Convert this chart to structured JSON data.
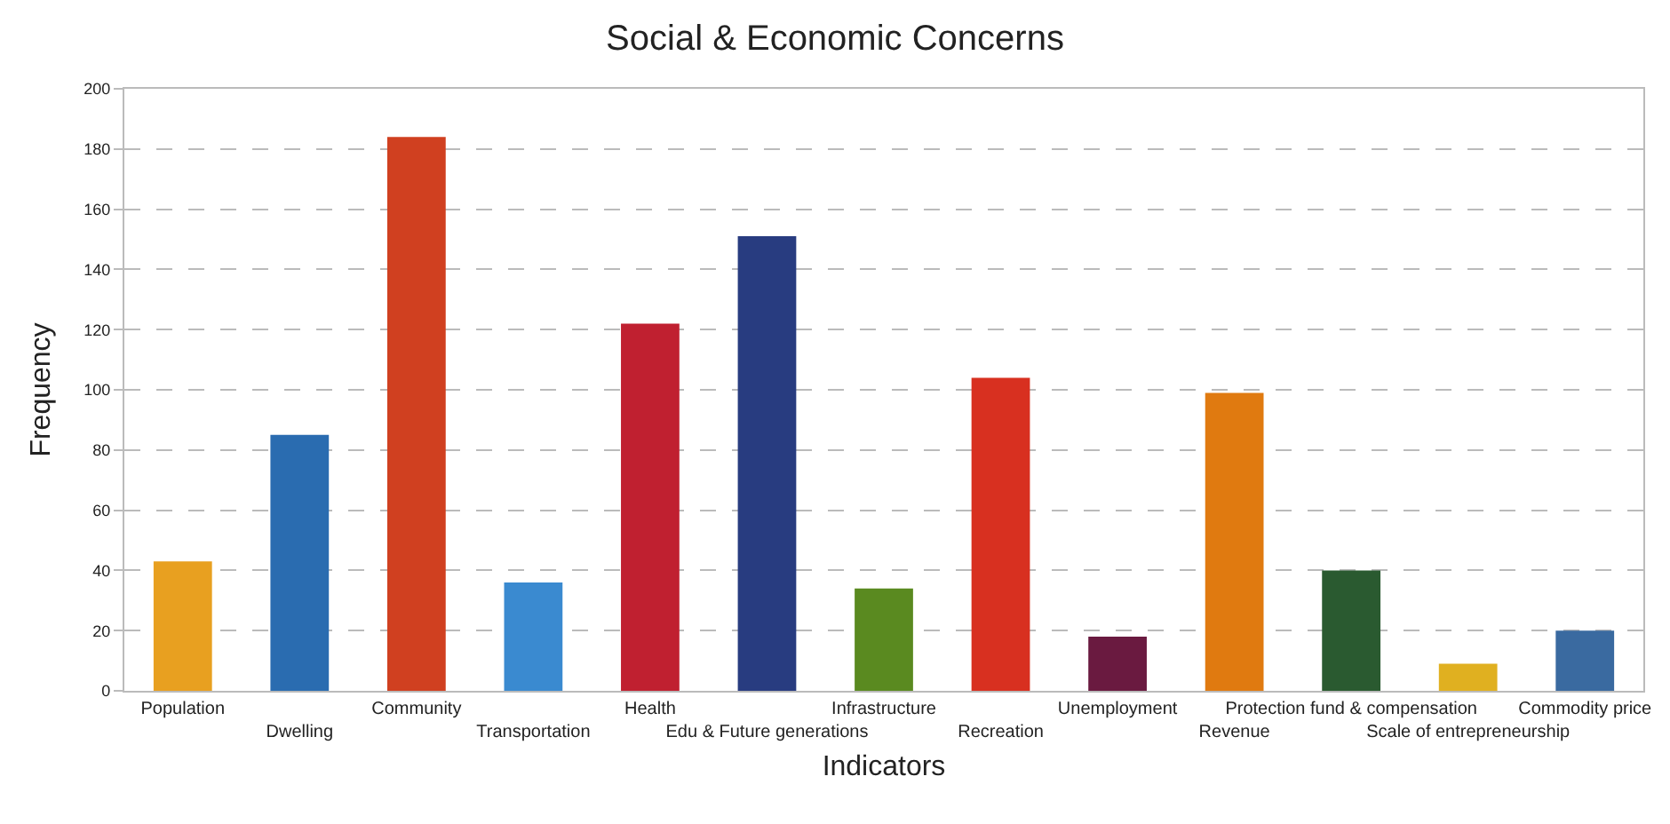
{
  "chart_data": {
    "type": "bar",
    "title": "Social & Economic Concerns",
    "xlabel": "Indicators",
    "ylabel": "Frequency",
    "categories": [
      "Population",
      "Dwelling",
      "Community",
      "Transportation",
      "Health",
      "Edu & Future generations",
      "Infrastructure",
      "Recreation",
      "Unemployment",
      "Revenue",
      "Protection fund & compensation",
      "Scale of entrepreneurship",
      "Commodity price"
    ],
    "values": [
      43,
      85,
      184,
      36,
      122,
      151,
      34,
      104,
      18,
      99,
      40,
      9,
      20
    ],
    "colors": [
      "#e8a020",
      "#2a6cb0",
      "#d04020",
      "#3a8ad0",
      "#c02030",
      "#283c80",
      "#5a8a20",
      "#d83020",
      "#6a1a40",
      "#e07a10",
      "#2a5a30",
      "#e0b020",
      "#3a6aa0"
    ],
    "ylim": [
      0,
      200
    ],
    "yticks": [
      0,
      20,
      40,
      60,
      80,
      100,
      120,
      140,
      160,
      180,
      200
    ],
    "grid": "y"
  }
}
